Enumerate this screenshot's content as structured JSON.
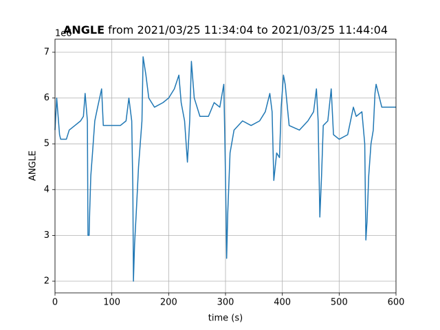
{
  "chart_data": {
    "type": "line",
    "title_name": "ANGLE",
    "title": " from 2021/03/25 11:34:04 to 2021/03/25 11:44:04",
    "x_label": "time (s)",
    "y_label": "ANGLE",
    "y_offset_label": "1e6",
    "xlim": [
      0,
      600
    ],
    "xticks": [
      0,
      100,
      200,
      300,
      400,
      500,
      600
    ],
    "ylim": [
      1.745,
      7.285
    ],
    "yticks": [
      2,
      3,
      4,
      5,
      6,
      7
    ],
    "grid": true,
    "series": [
      {
        "name": "ANGLE",
        "color": "#1f77b4",
        "x": [
          0,
          3,
          8,
          10,
          20,
          25,
          35,
          45,
          50,
          53,
          57,
          58,
          60,
          61,
          63,
          66,
          70,
          75,
          82,
          85,
          100,
          115,
          125,
          130,
          135,
          137,
          138,
          140,
          143,
          147,
          150,
          153,
          155,
          160,
          165,
          175,
          190,
          200,
          210,
          218,
          222,
          228,
          233,
          237,
          240,
          245,
          255,
          270,
          280,
          290,
          297,
          299,
          301,
          302,
          304,
          308,
          315,
          330,
          345,
          360,
          370,
          378,
          382,
          385,
          390,
          395,
          398,
          402,
          405,
          412,
          430,
          445,
          455,
          460,
          463,
          466,
          469,
          472,
          480,
          486,
          490,
          500,
          515,
          525,
          530,
          540,
          545,
          547,
          549,
          552,
          556,
          560,
          563,
          565,
          575,
          590,
          600
        ],
        "values": [
          5.3,
          6.0,
          5.2,
          5.1,
          5.1,
          5.3,
          5.4,
          5.5,
          5.6,
          6.1,
          5.5,
          3.0,
          3.0,
          3.5,
          4.3,
          4.8,
          5.5,
          5.8,
          6.2,
          5.4,
          5.4,
          5.4,
          5.5,
          6.0,
          5.5,
          4.0,
          2.0,
          2.8,
          3.5,
          4.5,
          5.0,
          5.5,
          6.9,
          6.5,
          6.0,
          5.8,
          5.9,
          6.0,
          6.2,
          6.5,
          5.9,
          5.5,
          4.6,
          5.5,
          6.8,
          6.0,
          5.6,
          5.6,
          5.9,
          5.8,
          6.3,
          5.0,
          3.5,
          2.5,
          3.5,
          4.8,
          5.3,
          5.5,
          5.4,
          5.5,
          5.7,
          6.1,
          5.7,
          4.2,
          4.8,
          4.7,
          5.8,
          6.5,
          6.3,
          5.4,
          5.3,
          5.5,
          5.7,
          6.2,
          5.5,
          3.4,
          4.3,
          5.4,
          5.5,
          6.2,
          5.2,
          5.1,
          5.2,
          5.8,
          5.6,
          5.7,
          5.0,
          2.9,
          3.3,
          4.3,
          5.0,
          5.3,
          6.1,
          6.3,
          5.8,
          5.8,
          5.8
        ]
      }
    ]
  }
}
